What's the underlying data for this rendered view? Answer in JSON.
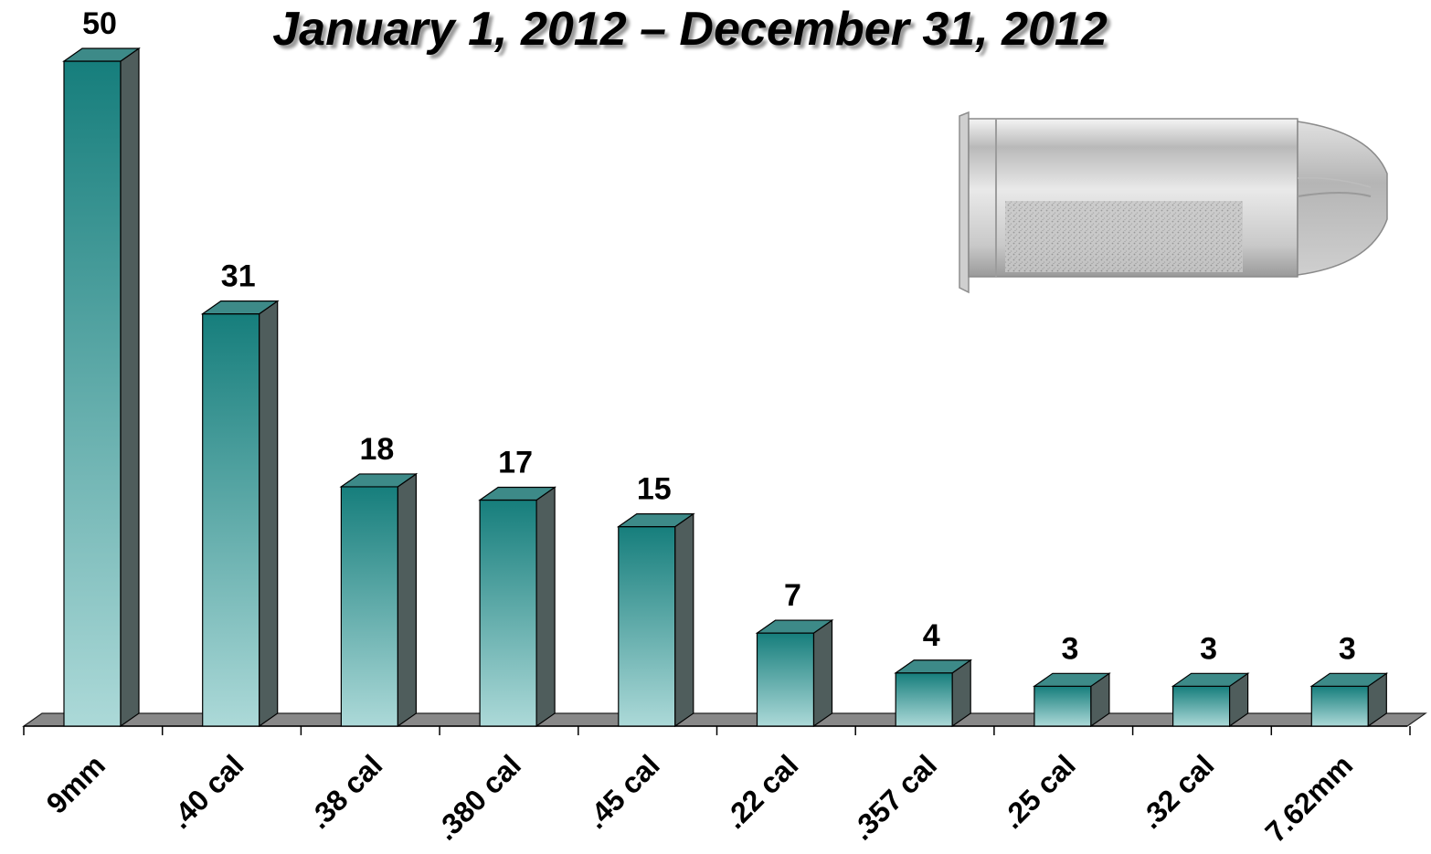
{
  "chart_data": {
    "type": "bar",
    "title": "January 1, 2012 – December 31, 2012",
    "categories": [
      "9mm",
      ".40 cal",
      ".38 cal",
      ".380 cal",
      ".45 cal",
      ".22 cal",
      ".357 cal",
      ".25 cal",
      ".32 cal",
      "7.62mm"
    ],
    "values": [
      50,
      31,
      18,
      17,
      15,
      7,
      4,
      3,
      3,
      3
    ],
    "xlabel": "",
    "ylabel": "",
    "ylim": [
      0,
      50
    ],
    "grid": false,
    "legend": "none",
    "bar_style": "3d",
    "colors": {
      "bar_top": "#167e7c",
      "bar_bottom": "#acd9d8",
      "bar_side": "#4f5d5c",
      "bar_cap": "#3d8a88",
      "floor": "#888888"
    }
  },
  "image": {
    "description_icon": "bullet-cartridge-icon"
  }
}
